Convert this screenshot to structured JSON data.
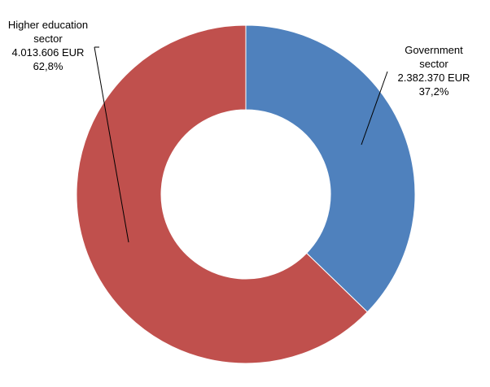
{
  "chart_data": {
    "type": "pie",
    "variant": "donut",
    "title": "",
    "colors": {
      "Government sector": "#4F81BD",
      "Higher education sector": "#C0504D"
    },
    "slices": [
      {
        "label": "Government sector",
        "value": 2382370,
        "value_text": "2.382.370 EUR",
        "percent": 37.2,
        "percent_text": "37,2%",
        "color": "#4F81BD"
      },
      {
        "label": "Higher education sector",
        "value": 4013606,
        "value_text": "4.013.606 EUR",
        "percent": 62.8,
        "percent_text": "62,8%",
        "color": "#C0504D"
      }
    ],
    "data_labels": {
      "government": {
        "line1": "Government",
        "line2": "sector",
        "value": "2.382.370 EUR",
        "percent": "37,2%"
      },
      "higher": {
        "line1": "Higher education",
        "line2": "sector",
        "value": "4.013.606 EUR",
        "percent": "62,8%"
      }
    }
  }
}
